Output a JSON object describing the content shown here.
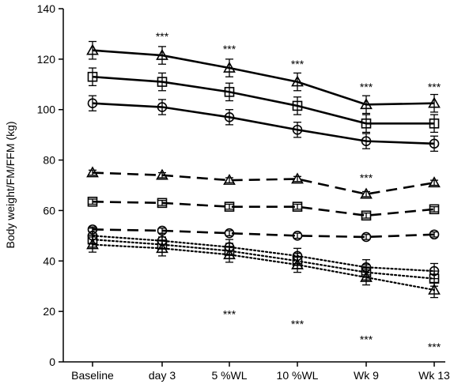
{
  "chart_data": {
    "type": "line",
    "title": "",
    "xlabel": "",
    "ylabel": "Body weight/FM/FFM (kg)",
    "ylim": [
      0,
      140
    ],
    "yticks": [
      0,
      20,
      40,
      60,
      80,
      100,
      120,
      140
    ],
    "categories": [
      "Baseline",
      "day 3",
      "5 %WL",
      "10 %WL",
      "Wk 9",
      "Wk 13"
    ],
    "grid": false,
    "legend": "none",
    "series": [
      {
        "marker": "triangle",
        "line": "solid",
        "values": [
          123.5,
          121.5,
          116.5,
          111,
          102,
          102.5
        ],
        "err": [
          3.5,
          3.5,
          3.5,
          3.5,
          3.5,
          3.5
        ]
      },
      {
        "marker": "square",
        "line": "solid",
        "values": [
          113,
          111,
          107,
          101.5,
          94.5,
          94.5
        ],
        "err": [
          3.5,
          3.5,
          3.5,
          3.5,
          3.5,
          3.5
        ]
      },
      {
        "marker": "circle",
        "line": "solid",
        "values": [
          102.5,
          101,
          97,
          92,
          87.5,
          86.5
        ],
        "err": [
          3,
          3,
          3,
          3,
          3,
          3
        ]
      },
      {
        "marker": "triangle",
        "line": "dashed",
        "values": [
          75,
          74,
          72,
          72.5,
          66.5,
          71
        ],
        "err": [
          1,
          1,
          1,
          1,
          1,
          1
        ]
      },
      {
        "marker": "square",
        "line": "dashed",
        "values": [
          63.5,
          63,
          61.5,
          61.5,
          58,
          60.5
        ],
        "err": [
          1,
          1,
          1,
          1,
          1,
          1
        ]
      },
      {
        "marker": "circle",
        "line": "dashed",
        "values": [
          52.5,
          52,
          51,
          50,
          49.5,
          50.5
        ],
        "err": [
          1,
          1,
          1,
          1,
          1,
          1
        ]
      },
      {
        "marker": "circle",
        "line": "dotted",
        "values": [
          50,
          48,
          45.5,
          42,
          37.5,
          36
        ],
        "err": [
          3,
          3,
          3,
          3,
          3,
          3
        ]
      },
      {
        "marker": "square",
        "line": "dotted",
        "values": [
          48.5,
          46.5,
          44,
          40,
          35.5,
          33
        ],
        "err": [
          3,
          3,
          3,
          3,
          3,
          3
        ]
      },
      {
        "marker": "triangle",
        "line": "dotted",
        "values": [
          46.5,
          45,
          42.5,
          38.5,
          33.5,
          28.5
        ],
        "err": [
          3,
          3,
          3,
          3,
          3,
          3
        ]
      }
    ],
    "annotations": [
      {
        "text": "***",
        "x": "day 3",
        "y": 129
      },
      {
        "text": "***",
        "x": "5 %WL",
        "y": 124
      },
      {
        "text": "***",
        "x": "10 %WL",
        "y": 118
      },
      {
        "text": "***",
        "x": "Wk 9",
        "y": 109
      },
      {
        "text": "***",
        "x": "Wk 13",
        "y": 109
      },
      {
        "text": "***",
        "x": "Wk 9",
        "y": 73
      },
      {
        "text": "***",
        "x": "5 %WL",
        "y": 19
      },
      {
        "text": "***",
        "x": "10 %WL",
        "y": 15
      },
      {
        "text": "***",
        "x": "Wk 9",
        "y": 9
      },
      {
        "text": "***",
        "x": "Wk 13",
        "y": 6
      }
    ]
  }
}
